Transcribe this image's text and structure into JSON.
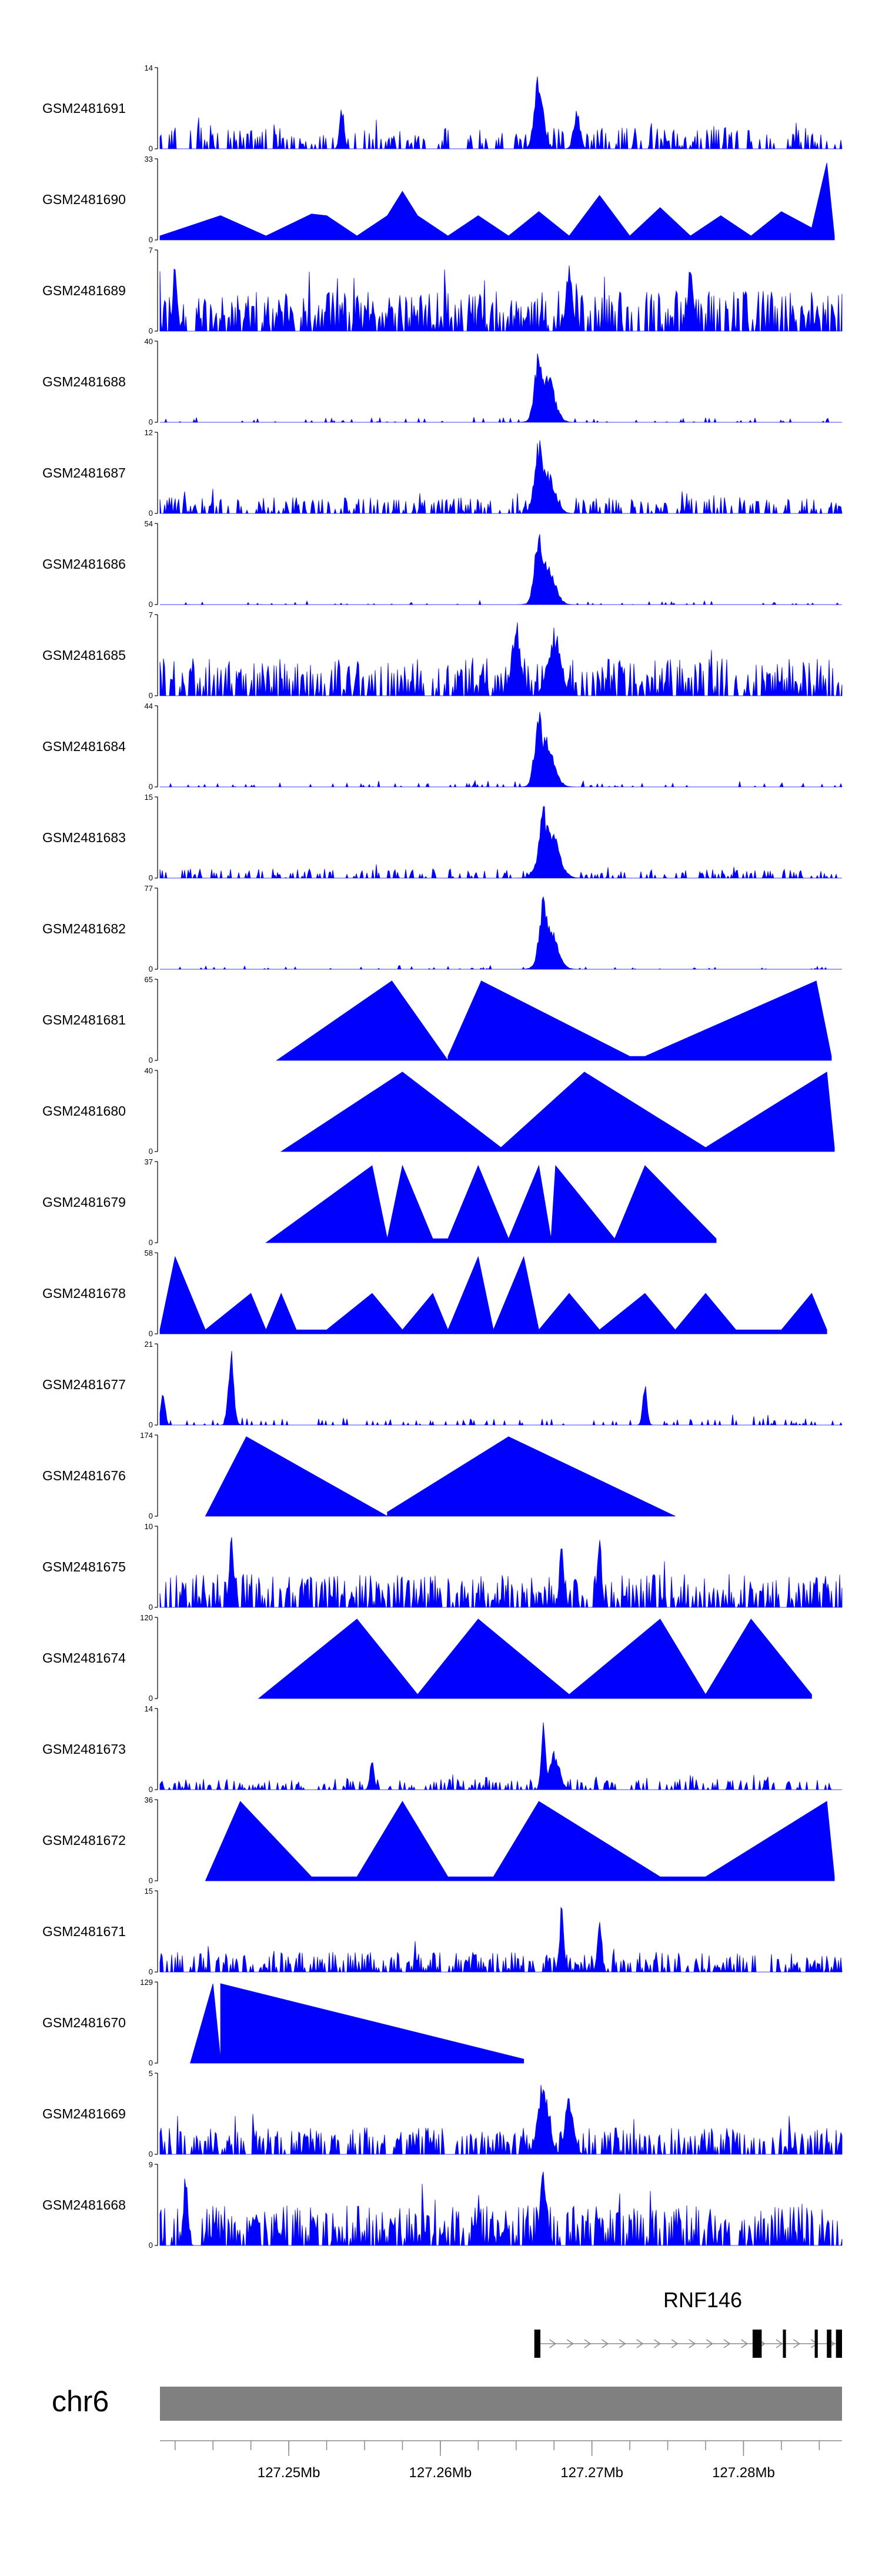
{
  "chart_data": {
    "type": "area",
    "title": "",
    "xlabel": "",
    "ylabel": "",
    "fill_color": "#0000ff",
    "x_range": [
      127.2415,
      127.2865
    ],
    "x_ticks": [
      {
        "value": 127.25,
        "label": "127.25Mb"
      },
      {
        "value": 127.26,
        "label": "127.26Mb"
      },
      {
        "value": 127.27,
        "label": "127.27Mb"
      },
      {
        "value": 127.28,
        "label": "127.28Mb"
      }
    ],
    "tracks": [
      {
        "name": "GSM2481691",
        "ymax": 14,
        "ymax_label": "14",
        "ymin_label": "0",
        "kind": "noisy",
        "base": 0.16,
        "sparse": 0.35,
        "peaks": [
          [
            127.2665,
            0.95,
            0.0004
          ],
          [
            127.2535,
            0.6,
            0.0002
          ],
          [
            127.269,
            0.5,
            0.0003
          ]
        ]
      },
      {
        "name": "GSM2481690",
        "ymax": 33,
        "ymax_label": "33",
        "ymin_label": "0",
        "kind": "triangles",
        "points": [
          [
            127.2415,
            0
          ],
          [
            127.2415,
            0.05
          ],
          [
            127.2455,
            0.3
          ],
          [
            127.2485,
            0.05
          ],
          [
            127.2515,
            0.32
          ],
          [
            127.2525,
            0.3
          ],
          [
            127.2545,
            0.05
          ],
          [
            127.2565,
            0.3
          ],
          [
            127.2575,
            0.6
          ],
          [
            127.2585,
            0.3
          ],
          [
            127.2605,
            0.05
          ],
          [
            127.2625,
            0.3
          ],
          [
            127.2645,
            0.05
          ],
          [
            127.2665,
            0.35
          ],
          [
            127.2685,
            0.05
          ],
          [
            127.2705,
            0.55
          ],
          [
            127.2725,
            0.05
          ],
          [
            127.2745,
            0.4
          ],
          [
            127.2765,
            0.05
          ],
          [
            127.2785,
            0.3
          ],
          [
            127.2805,
            0.05
          ],
          [
            127.2825,
            0.35
          ],
          [
            127.2845,
            0.15
          ],
          [
            127.2855,
            0.95
          ],
          [
            127.286,
            0.05
          ],
          [
            127.286,
            0
          ]
        ]
      },
      {
        "name": "GSM2481689",
        "ymax": 7,
        "ymax_label": "7",
        "ymin_label": "0",
        "kind": "noisy",
        "base": 0.3,
        "sparse": 0.6,
        "peaks": [
          [
            127.2425,
            0.9,
            0.0002
          ],
          [
            127.2685,
            0.9,
            0.0003
          ],
          [
            127.2765,
            0.8,
            0.0003
          ]
        ]
      },
      {
        "name": "GSM2481688",
        "ymax": 40,
        "ymax_label": "40",
        "ymin_label": "0",
        "kind": "peak",
        "base": 0.03,
        "sparse": 0.08,
        "peaks": [
          [
            127.2665,
            0.95,
            0.0004
          ],
          [
            127.267,
            0.65,
            0.0007
          ]
        ]
      },
      {
        "name": "GSM2481687",
        "ymax": 12,
        "ymax_label": "12",
        "ymin_label": "0",
        "kind": "noisy",
        "base": 0.12,
        "sparse": 0.4,
        "peaks": [
          [
            127.2665,
            0.95,
            0.0004
          ],
          [
            127.267,
            0.6,
            0.0007
          ]
        ]
      },
      {
        "name": "GSM2481686",
        "ymax": 54,
        "ymax_label": "54",
        "ymin_label": "0",
        "kind": "peak",
        "base": 0.02,
        "sparse": 0.06,
        "peaks": [
          [
            127.2665,
            0.95,
            0.0004
          ],
          [
            127.267,
            0.6,
            0.0007
          ]
        ]
      },
      {
        "name": "GSM2481685",
        "ymax": 7,
        "ymax_label": "7",
        "ymin_label": "0",
        "kind": "noisy",
        "base": 0.28,
        "sparse": 0.55,
        "peaks": [
          [
            127.265,
            0.95,
            0.0004
          ],
          [
            127.2675,
            0.85,
            0.0006
          ]
        ]
      },
      {
        "name": "GSM2481684",
        "ymax": 44,
        "ymax_label": "44",
        "ymin_label": "0",
        "kind": "peak",
        "base": 0.03,
        "sparse": 0.07,
        "peaks": [
          [
            127.2665,
            0.95,
            0.0004
          ],
          [
            127.267,
            0.65,
            0.0007
          ]
        ]
      },
      {
        "name": "GSM2481683",
        "ymax": 15,
        "ymax_label": "15",
        "ymin_label": "0",
        "kind": "noisy",
        "base": 0.07,
        "sparse": 0.28,
        "peaks": [
          [
            127.2668,
            0.95,
            0.0004
          ],
          [
            127.2672,
            0.7,
            0.0008
          ]
        ]
      },
      {
        "name": "GSM2481682",
        "ymax": 77,
        "ymax_label": "77",
        "ymin_label": "0",
        "kind": "peak",
        "base": 0.02,
        "sparse": 0.05,
        "peaks": [
          [
            127.2668,
            0.95,
            0.0004
          ],
          [
            127.2672,
            0.65,
            0.0007
          ]
        ]
      },
      {
        "name": "GSM2481681",
        "ymax": 65,
        "ymax_label": "65",
        "ymin_label": "0",
        "kind": "triangles",
        "points": [
          [
            127.2492,
            0
          ],
          [
            127.2568,
            0.98
          ],
          [
            127.2605,
            0
          ],
          [
            127.2605,
            0.05
          ],
          [
            127.2627,
            0.98
          ],
          [
            127.2725,
            0.05
          ],
          [
            127.2735,
            0.05
          ],
          [
            127.2848,
            0.98
          ],
          [
            127.2858,
            0.05
          ],
          [
            127.2858,
            0
          ]
        ]
      },
      {
        "name": "GSM2481680",
        "ymax": 40,
        "ymax_label": "40",
        "ymin_label": "0",
        "kind": "triangles",
        "points": [
          [
            127.2495,
            0
          ],
          [
            127.2575,
            0.98
          ],
          [
            127.264,
            0.05
          ],
          [
            127.2695,
            0.98
          ],
          [
            127.2775,
            0.05
          ],
          [
            127.2855,
            0.98
          ],
          [
            127.286,
            0.05
          ],
          [
            127.286,
            0
          ]
        ]
      },
      {
        "name": "GSM2481679",
        "ymax": 37,
        "ymax_label": "37",
        "ymin_label": "0",
        "kind": "triangles",
        "points": [
          [
            127.2485,
            0
          ],
          [
            127.2555,
            0.95
          ],
          [
            127.2565,
            0.05
          ],
          [
            127.2575,
            0.95
          ],
          [
            127.2595,
            0.05
          ],
          [
            127.2605,
            0.05
          ],
          [
            127.2625,
            0.95
          ],
          [
            127.2645,
            0.05
          ],
          [
            127.2665,
            0.95
          ],
          [
            127.2673,
            0.05
          ],
          [
            127.2676,
            0.95
          ],
          [
            127.2715,
            0.05
          ],
          [
            127.2735,
            0.95
          ],
          [
            127.2782,
            0.05
          ],
          [
            127.2782,
            0
          ]
        ]
      },
      {
        "name": "GSM2481678",
        "ymax": 58,
        "ymax_label": "58",
        "ymin_label": "0",
        "kind": "triangles",
        "points": [
          [
            127.2415,
            0
          ],
          [
            127.2415,
            0.05
          ],
          [
            127.2425,
            0.95
          ],
          [
            127.2445,
            0.05
          ],
          [
            127.2475,
            0.5
          ],
          [
            127.2485,
            0.05
          ],
          [
            127.2495,
            0.5
          ],
          [
            127.2505,
            0.05
          ],
          [
            127.2525,
            0.05
          ],
          [
            127.2555,
            0.5
          ],
          [
            127.2575,
            0.05
          ],
          [
            127.2595,
            0.5
          ],
          [
            127.2605,
            0.05
          ],
          [
            127.2625,
            0.95
          ],
          [
            127.2635,
            0.05
          ],
          [
            127.2655,
            0.95
          ],
          [
            127.2665,
            0.05
          ],
          [
            127.2685,
            0.5
          ],
          [
            127.2705,
            0.05
          ],
          [
            127.2735,
            0.5
          ],
          [
            127.2755,
            0.05
          ],
          [
            127.2775,
            0.5
          ],
          [
            127.2795,
            0.05
          ],
          [
            127.2825,
            0.05
          ],
          [
            127.2845,
            0.5
          ],
          [
            127.2855,
            0.05
          ],
          [
            127.2855,
            0
          ]
        ]
      },
      {
        "name": "GSM2481677",
        "ymax": 21,
        "ymax_label": "21",
        "ymin_label": "0",
        "kind": "noisy",
        "base": 0.05,
        "sparse": 0.15,
        "peaks": [
          [
            127.2462,
            0.95,
            0.00025
          ],
          [
            127.2735,
            0.55,
            0.0002
          ],
          [
            127.2417,
            0.45,
            0.0002
          ]
        ]
      },
      {
        "name": "GSM2481676",
        "ymax": 174,
        "ymax_label": "174",
        "ymin_label": "0",
        "kind": "triangles",
        "points": [
          [
            127.2445,
            0
          ],
          [
            127.2472,
            0.98
          ],
          [
            127.2565,
            0
          ],
          [
            127.2565,
            0.05
          ],
          [
            127.2645,
            0.98
          ],
          [
            127.2755,
            0
          ],
          [
            127.2755,
            0
          ]
        ]
      },
      {
        "name": "GSM2481675",
        "ymax": 10,
        "ymax_label": "10",
        "ymin_label": "0",
        "kind": "noisy",
        "base": 0.25,
        "sparse": 0.55,
        "peaks": [
          [
            127.2462,
            0.95,
            0.0002
          ],
          [
            127.268,
            0.95,
            0.0002
          ],
          [
            127.2705,
            0.9,
            0.0002
          ]
        ]
      },
      {
        "name": "GSM2481674",
        "ymax": 120,
        "ymax_label": "120",
        "ymin_label": "0",
        "kind": "triangles",
        "points": [
          [
            127.248,
            0
          ],
          [
            127.2545,
            0.98
          ],
          [
            127.2585,
            0.05
          ],
          [
            127.2625,
            0.98
          ],
          [
            127.2685,
            0.05
          ],
          [
            127.2745,
            0.98
          ],
          [
            127.2775,
            0.05
          ],
          [
            127.2805,
            0.98
          ],
          [
            127.2845,
            0.05
          ],
          [
            127.2845,
            0
          ]
        ]
      },
      {
        "name": "GSM2481673",
        "ymax": 14,
        "ymax_label": "14",
        "ymin_label": "0",
        "kind": "noisy",
        "base": 0.08,
        "sparse": 0.3,
        "peaks": [
          [
            127.2668,
            0.95,
            0.0002
          ],
          [
            127.2675,
            0.5,
            0.0005
          ],
          [
            127.2555,
            0.4,
            0.0002
          ]
        ]
      },
      {
        "name": "GSM2481672",
        "ymax": 36,
        "ymax_label": "36",
        "ymin_label": "0",
        "kind": "triangles",
        "points": [
          [
            127.2445,
            0
          ],
          [
            127.2468,
            0.98
          ],
          [
            127.2515,
            0.05
          ],
          [
            127.2545,
            0.05
          ],
          [
            127.2575,
            0.98
          ],
          [
            127.2605,
            0.05
          ],
          [
            127.2635,
            0.05
          ],
          [
            127.2665,
            0.98
          ],
          [
            127.2745,
            0.05
          ],
          [
            127.2775,
            0.05
          ],
          [
            127.2855,
            0.98
          ],
          [
            127.286,
            0.05
          ],
          [
            127.286,
            0
          ]
        ]
      },
      {
        "name": "GSM2481671",
        "ymax": 15,
        "ymax_label": "15",
        "ymin_label": "0",
        "kind": "noisy",
        "base": 0.15,
        "sparse": 0.45,
        "peaks": [
          [
            127.268,
            0.85,
            0.0002
          ],
          [
            127.2705,
            0.8,
            0.0002
          ]
        ]
      },
      {
        "name": "GSM2481670",
        "ymax": 129,
        "ymax_label": "129",
        "ymin_label": "0",
        "kind": "triangles",
        "points": [
          [
            127.2435,
            0
          ],
          [
            127.245,
            0.98
          ],
          [
            127.2455,
            0.05
          ],
          [
            127.2455,
            0.98
          ],
          [
            127.2655,
            0.05
          ],
          [
            127.2655,
            0
          ]
        ]
      },
      {
        "name": "GSM2481669",
        "ymax": 5,
        "ymax_label": "5",
        "ymin_label": "0",
        "kind": "noisy",
        "base": 0.2,
        "sparse": 0.5,
        "peaks": [
          [
            127.2668,
            0.95,
            0.0005
          ],
          [
            127.2685,
            0.75,
            0.0004
          ]
        ]
      },
      {
        "name": "GSM2481668",
        "ymax": 9,
        "ymax_label": "9",
        "ymin_label": "0",
        "kind": "noisy",
        "base": 0.3,
        "sparse": 0.6,
        "peaks": [
          [
            127.2432,
            0.95,
            0.0002
          ],
          [
            127.2668,
            0.95,
            0.0003
          ]
        ]
      }
    ],
    "gene": {
      "name": "RNF146",
      "start": 127.2662,
      "end": 127.2865,
      "strand": "+",
      "exons": [
        [
          127.2662,
          127.2666
        ],
        [
          127.2806,
          127.2812
        ],
        [
          127.2826,
          127.2828
        ],
        [
          127.2847,
          127.2849
        ],
        [
          127.2855,
          127.2858
        ],
        [
          127.2861,
          127.2865
        ]
      ]
    },
    "chromosome": {
      "name": "chr6"
    }
  }
}
